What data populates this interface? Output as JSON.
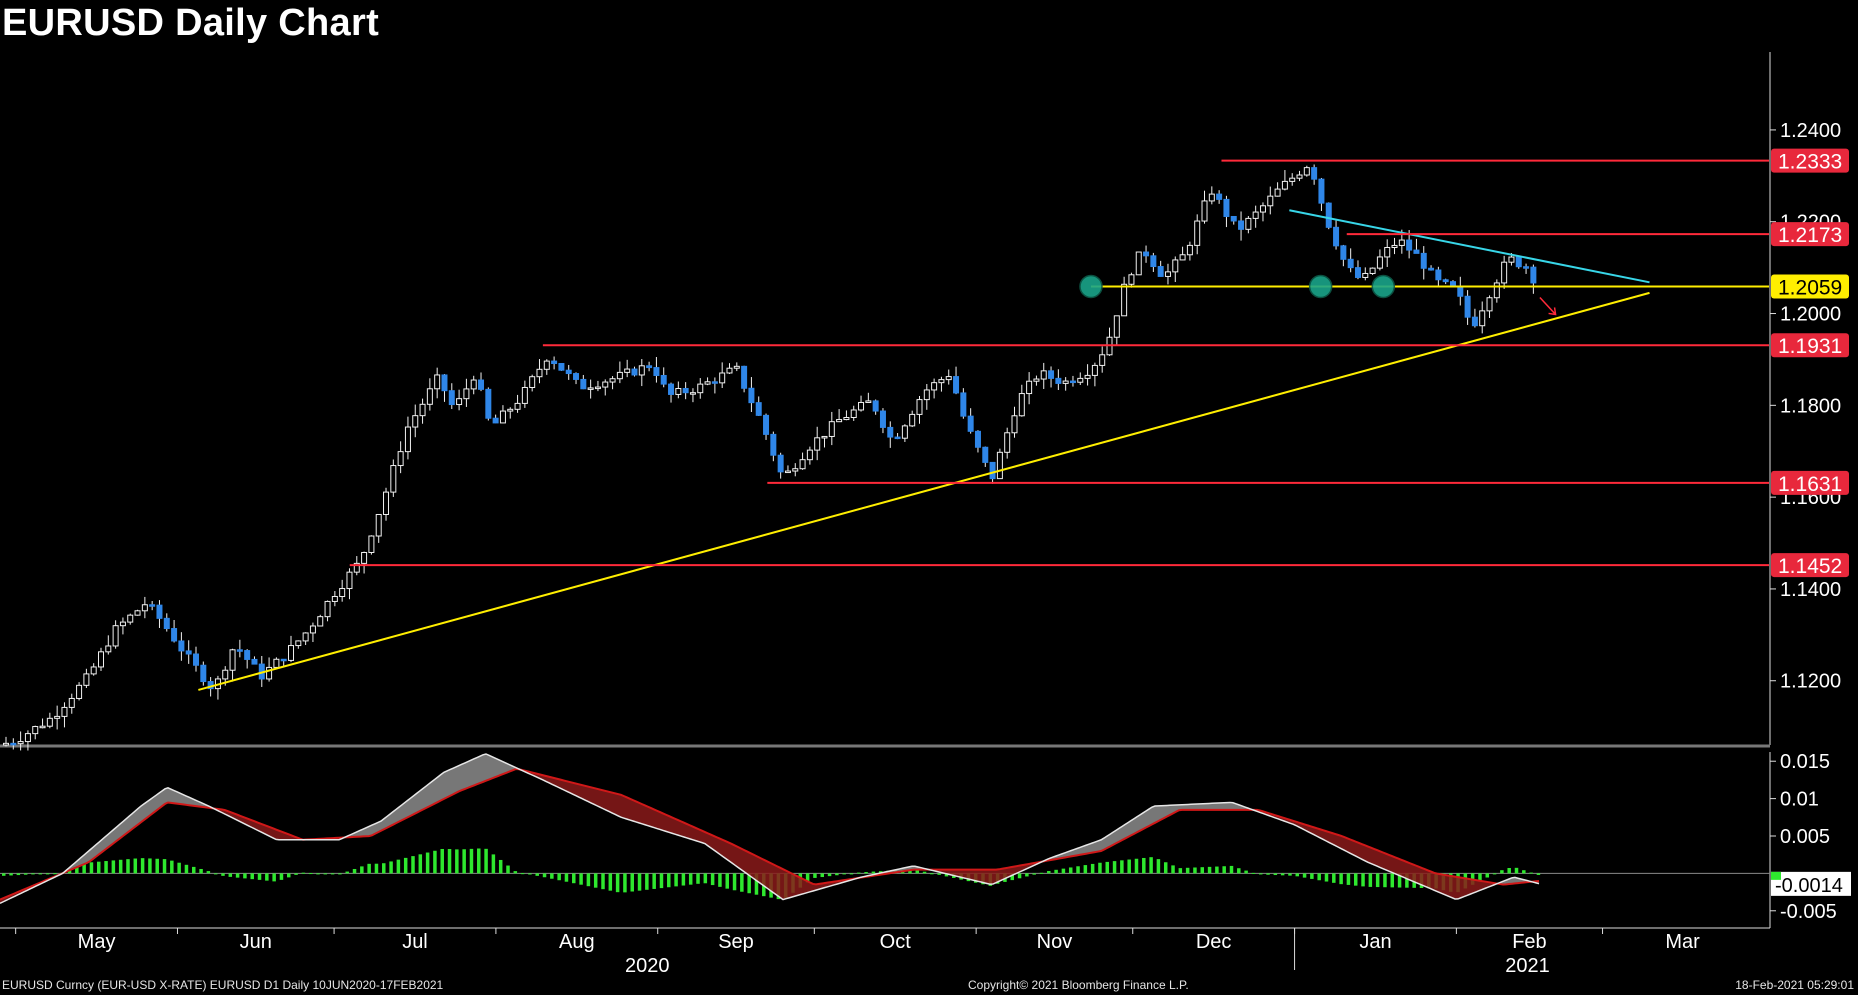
{
  "title": "EURUSD Daily Chart",
  "footer": {
    "left": "EURUSD Curncy (EUR-USD X-RATE) EURUSD D1  Daily 10JUN2020-17FEB2021",
    "center": "Copyright© 2021 Bloomberg Finance L.P.",
    "right": "18-Feb-2021 05:29:01"
  },
  "colors": {
    "up_candle": "#ffffff",
    "down_candle": "#2f86e8",
    "resistance": "#ff2a3a",
    "support_level": "#ffee00",
    "trendline_up": "#ffee00",
    "trendline_down": "#38d6e8",
    "pivot_marker": "#1aa58a",
    "macd_line": "#cccccc",
    "signal_line": "#d01818",
    "histogram": "#2ee82e"
  },
  "chart_data": [
    {
      "type": "candlestick",
      "series": [
        {
          "name": "EURUSD"
        }
      ],
      "x_tick_labels": [
        "May",
        "Jun",
        "Jul",
        "Aug",
        "Sep",
        "Oct",
        "Nov",
        "Dec",
        "Jan",
        "Feb",
        "Mar"
      ],
      "year_labels": [
        "2020",
        "2021"
      ],
      "y_tick_labels": [
        "1.1200",
        "1.1400",
        "1.1600",
        "1.1800",
        "1.2000",
        "1.2200",
        "1.2400"
      ],
      "ylim": [
        1.106,
        1.2585
      ],
      "key_levels": [
        {
          "label": "1.2333",
          "value": 1.2333,
          "kind": "resistance"
        },
        {
          "label": "1.2173",
          "value": 1.2173,
          "kind": "resistance"
        },
        {
          "label": "1.2059",
          "value": 1.2059,
          "kind": "current"
        },
        {
          "label": "1.1931",
          "value": 1.1931,
          "kind": "support"
        },
        {
          "label": "1.1631",
          "value": 1.1631,
          "kind": "support"
        },
        {
          "label": "1.1452",
          "value": 1.1452,
          "kind": "support"
        }
      ],
      "trendlines": [
        {
          "kind": "ascending support",
          "from": [
            "2020-06-05",
            1.118
          ],
          "to": [
            "2021-03-10",
            1.2045
          ]
        },
        {
          "kind": "descending resistance",
          "from": [
            "2020-12-31",
            1.2225
          ],
          "to": [
            "2021-03-10",
            1.2068
          ]
        }
      ],
      "pivot_markers": [
        {
          "date": "2020-11-23",
          "value": 1.2059
        },
        {
          "date": "2021-01-06",
          "value": 1.2059
        },
        {
          "date": "2021-01-18",
          "value": 1.2059
        }
      ],
      "projection_arrow": {
        "from": [
          "2021-02-17",
          1.2035
        ],
        "to": [
          "2021-02-20",
          1.1998
        ]
      },
      "daily_close_path": [
        [
          "2020-04-28",
          1.106
        ],
        [
          "2020-05-01",
          1.107
        ],
        [
          "2020-05-08",
          1.112
        ],
        [
          "2020-05-15",
          1.121
        ],
        [
          "2020-05-20",
          1.131
        ],
        [
          "2020-05-26",
          1.137
        ],
        [
          "2020-05-29",
          1.133
        ],
        [
          "2020-06-03",
          1.125
        ],
        [
          "2020-06-08",
          1.118
        ],
        [
          "2020-06-12",
          1.128
        ],
        [
          "2020-06-17",
          1.121
        ],
        [
          "2020-06-22",
          1.126
        ],
        [
          "2020-06-26",
          1.131
        ],
        [
          "2020-07-01",
          1.139
        ],
        [
          "2020-07-06",
          1.146
        ],
        [
          "2020-07-10",
          1.158
        ],
        [
          "2020-07-15",
          1.175
        ],
        [
          "2020-07-21",
          1.186
        ],
        [
          "2020-07-24",
          1.179
        ],
        [
          "2020-07-28",
          1.187
        ],
        [
          "2020-07-31",
          1.175
        ],
        [
          "2020-08-06",
          1.182
        ],
        [
          "2020-08-11",
          1.191
        ],
        [
          "2020-08-17",
          1.184
        ],
        [
          "2020-08-24",
          1.186
        ],
        [
          "2020-08-31",
          1.189
        ],
        [
          "2020-09-03",
          1.182
        ],
        [
          "2020-09-09",
          1.184
        ],
        [
          "2020-09-16",
          1.188
        ],
        [
          "2020-09-21",
          1.176
        ],
        [
          "2020-09-25",
          1.164
        ],
        [
          "2020-09-30",
          1.171
        ],
        [
          "2020-10-06",
          1.177
        ],
        [
          "2020-10-12",
          1.181
        ],
        [
          "2020-10-16",
          1.172
        ],
        [
          "2020-10-22",
          1.183
        ],
        [
          "2020-10-27",
          1.187
        ],
        [
          "2020-10-30",
          1.176
        ],
        [
          "2020-11-04",
          1.164
        ],
        [
          "2020-11-09",
          1.181
        ],
        [
          "2020-11-13",
          1.187
        ],
        [
          "2020-11-18",
          1.185
        ],
        [
          "2020-11-23",
          1.188
        ],
        [
          "2020-11-26",
          1.193
        ],
        [
          "2020-11-30",
          1.208
        ],
        [
          "2020-12-03",
          1.214
        ],
        [
          "2020-12-07",
          1.208
        ],
        [
          "2020-12-11",
          1.213
        ],
        [
          "2020-12-16",
          1.227
        ],
        [
          "2020-12-21",
          1.218
        ],
        [
          "2020-12-24",
          1.221
        ],
        [
          "2020-12-29",
          1.227
        ],
        [
          "2021-01-04",
          1.233
        ],
        [
          "2021-01-07",
          1.221
        ],
        [
          "2021-01-11",
          1.21
        ],
        [
          "2021-01-14",
          1.207
        ],
        [
          "2021-01-18",
          1.213
        ],
        [
          "2021-01-21",
          1.216
        ],
        [
          "2021-01-25",
          1.212
        ],
        [
          "2021-01-28",
          1.207
        ],
        [
          "2021-02-01",
          1.205
        ],
        [
          "2021-02-04",
          1.197
        ],
        [
          "2021-02-08",
          1.206
        ],
        [
          "2021-02-11",
          1.212
        ],
        [
          "2021-02-15",
          1.21
        ],
        [
          "2021-02-17",
          1.204
        ]
      ]
    },
    {
      "type": "line",
      "series": [
        {
          "name": ""
        },
        {
          "name": ""
        }
      ],
      "y_tick_labels": [
        "0.015",
        "0.01",
        "0.005",
        "-0.005"
      ],
      "ylim": [
        -0.0065,
        0.0165
      ],
      "last_value_label": "-0.0014",
      "macd_path": [
        [
          "2020-04-28",
          -0.004
        ],
        [
          "2020-05-10",
          0.0
        ],
        [
          "2020-05-25",
          0.009
        ],
        [
          "2020-05-30",
          0.0115
        ],
        [
          "2020-06-07",
          0.009
        ],
        [
          "2020-06-20",
          0.0045
        ],
        [
          "2020-07-02",
          0.0045
        ],
        [
          "2020-07-10",
          0.007
        ],
        [
          "2020-07-22",
          0.0135
        ],
        [
          "2020-07-30",
          0.016
        ],
        [
          "2020-08-10",
          0.0125
        ],
        [
          "2020-08-25",
          0.0075
        ],
        [
          "2020-09-10",
          0.004
        ],
        [
          "2020-09-25",
          -0.0035
        ],
        [
          "2020-10-10",
          -0.0005
        ],
        [
          "2020-10-20",
          0.001
        ],
        [
          "2020-11-04",
          -0.0015
        ],
        [
          "2020-11-15",
          0.002
        ],
        [
          "2020-11-25",
          0.0045
        ],
        [
          "2020-12-05",
          0.009
        ],
        [
          "2020-12-20",
          0.0095
        ],
        [
          "2021-01-01",
          0.0065
        ],
        [
          "2021-01-15",
          0.0015
        ],
        [
          "2021-02-01",
          -0.0035
        ],
        [
          "2021-02-12",
          -0.0005
        ],
        [
          "2021-02-17",
          -0.0014
        ]
      ],
      "signal_path": [
        [
          "2020-04-28",
          -0.0035
        ],
        [
          "2020-05-15",
          0.0015
        ],
        [
          "2020-05-30",
          0.0095
        ],
        [
          "2020-06-10",
          0.0085
        ],
        [
          "2020-06-25",
          0.0045
        ],
        [
          "2020-07-08",
          0.005
        ],
        [
          "2020-07-25",
          0.011
        ],
        [
          "2020-08-05",
          0.014
        ],
        [
          "2020-08-25",
          0.0105
        ],
        [
          "2020-09-15",
          0.004
        ],
        [
          "2020-10-01",
          -0.0015
        ],
        [
          "2020-10-20",
          0.0005
        ],
        [
          "2020-11-05",
          0.0005
        ],
        [
          "2020-11-25",
          0.003
        ],
        [
          "2020-12-10",
          0.0085
        ],
        [
          "2020-12-25",
          0.0085
        ],
        [
          "2021-01-10",
          0.005
        ],
        [
          "2021-01-28",
          0.0
        ],
        [
          "2021-02-10",
          -0.0015
        ],
        [
          "2021-02-17",
          -0.001
        ]
      ]
    }
  ]
}
